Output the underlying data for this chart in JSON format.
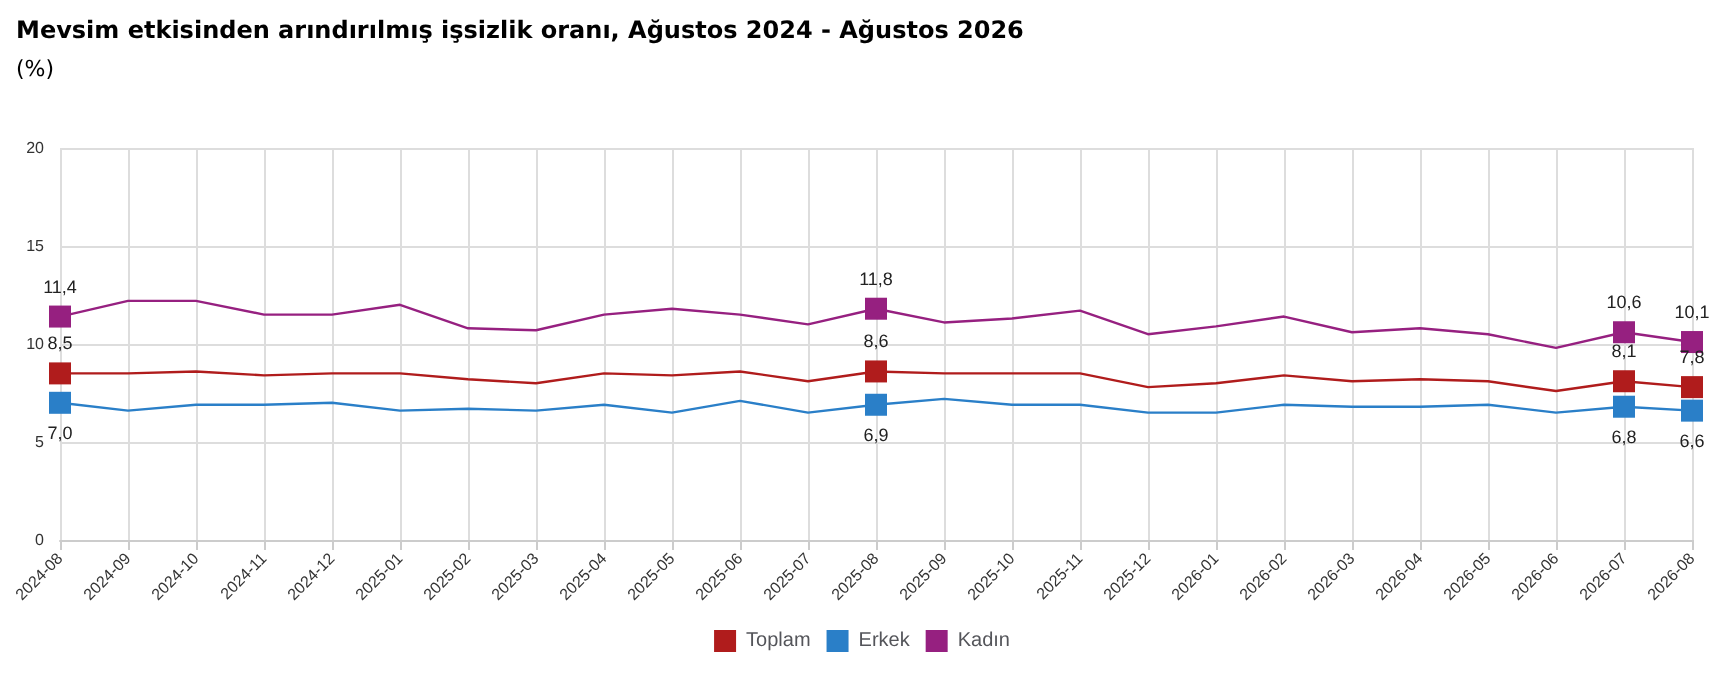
{
  "chart_data": {
    "type": "line",
    "title": "Mevsim etkisinden arındırılmış işsizlik oranı, Ağustos 2024 - Ağustos 2026",
    "subtitle": "(%)",
    "categories": [
      "2024-08",
      "2024-09",
      "2024-10",
      "2024-11",
      "2024-12",
      "2025-01",
      "2025-02",
      "2025-03",
      "2025-04",
      "2025-05",
      "2025-06",
      "2025-07",
      "2025-08",
      "2025-09",
      "2025-10",
      "2025-11",
      "2025-12",
      "2026-01",
      "2026-02",
      "2026-03",
      "2026-04",
      "2026-05",
      "2026-06",
      "2026-07",
      "2026-08"
    ],
    "series": [
      {
        "name": "Toplam",
        "color": "#b01c1c",
        "values": [
          8.5,
          8.5,
          8.6,
          8.4,
          8.5,
          8.5,
          8.2,
          8.0,
          8.5,
          8.4,
          8.6,
          8.1,
          8.6,
          8.5,
          8.5,
          8.5,
          7.8,
          8.0,
          8.4,
          8.1,
          8.2,
          8.1,
          7.6,
          8.1,
          7.8
        ],
        "value_labels": [
          "8,5",
          null,
          null,
          null,
          null,
          null,
          null,
          null,
          null,
          null,
          null,
          null,
          "8,6",
          null,
          null,
          null,
          null,
          null,
          null,
          null,
          null,
          null,
          null,
          "8,1",
          "7,8"
        ]
      },
      {
        "name": "Erkek",
        "color": "#2a7fc8",
        "values": [
          7.0,
          6.6,
          6.9,
          6.9,
          7.0,
          6.6,
          6.7,
          6.6,
          6.9,
          6.5,
          7.1,
          6.5,
          6.9,
          7.2,
          6.9,
          6.9,
          6.5,
          6.5,
          6.9,
          6.8,
          6.8,
          6.9,
          6.5,
          6.8,
          6.6
        ],
        "value_labels": [
          "7,0",
          null,
          null,
          null,
          null,
          null,
          null,
          null,
          null,
          null,
          null,
          null,
          "6,9",
          null,
          null,
          null,
          null,
          null,
          null,
          null,
          null,
          null,
          null,
          "6,8",
          "6,6"
        ]
      },
      {
        "name": "Kadın",
        "color": "#962080",
        "values": [
          11.4,
          12.2,
          12.2,
          11.5,
          11.5,
          12.0,
          10.8,
          10.7,
          11.5,
          11.8,
          11.5,
          11.0,
          11.8,
          11.1,
          11.3,
          11.7,
          10.5,
          10.9,
          11.4,
          10.6,
          10.8,
          10.5,
          9.8,
          10.6,
          10.1
        ],
        "value_labels": [
          "11,4",
          null,
          null,
          null,
          null,
          null,
          null,
          null,
          null,
          null,
          null,
          null,
          "11,8",
          null,
          null,
          null,
          null,
          null,
          null,
          null,
          null,
          null,
          null,
          "10,6",
          "10,1"
        ]
      }
    ],
    "ylim": [
      0,
      20
    ],
    "yticks": [
      0,
      5,
      10,
      15,
      20
    ],
    "grid": true,
    "legend": "bottom",
    "line_style": "solid"
  }
}
